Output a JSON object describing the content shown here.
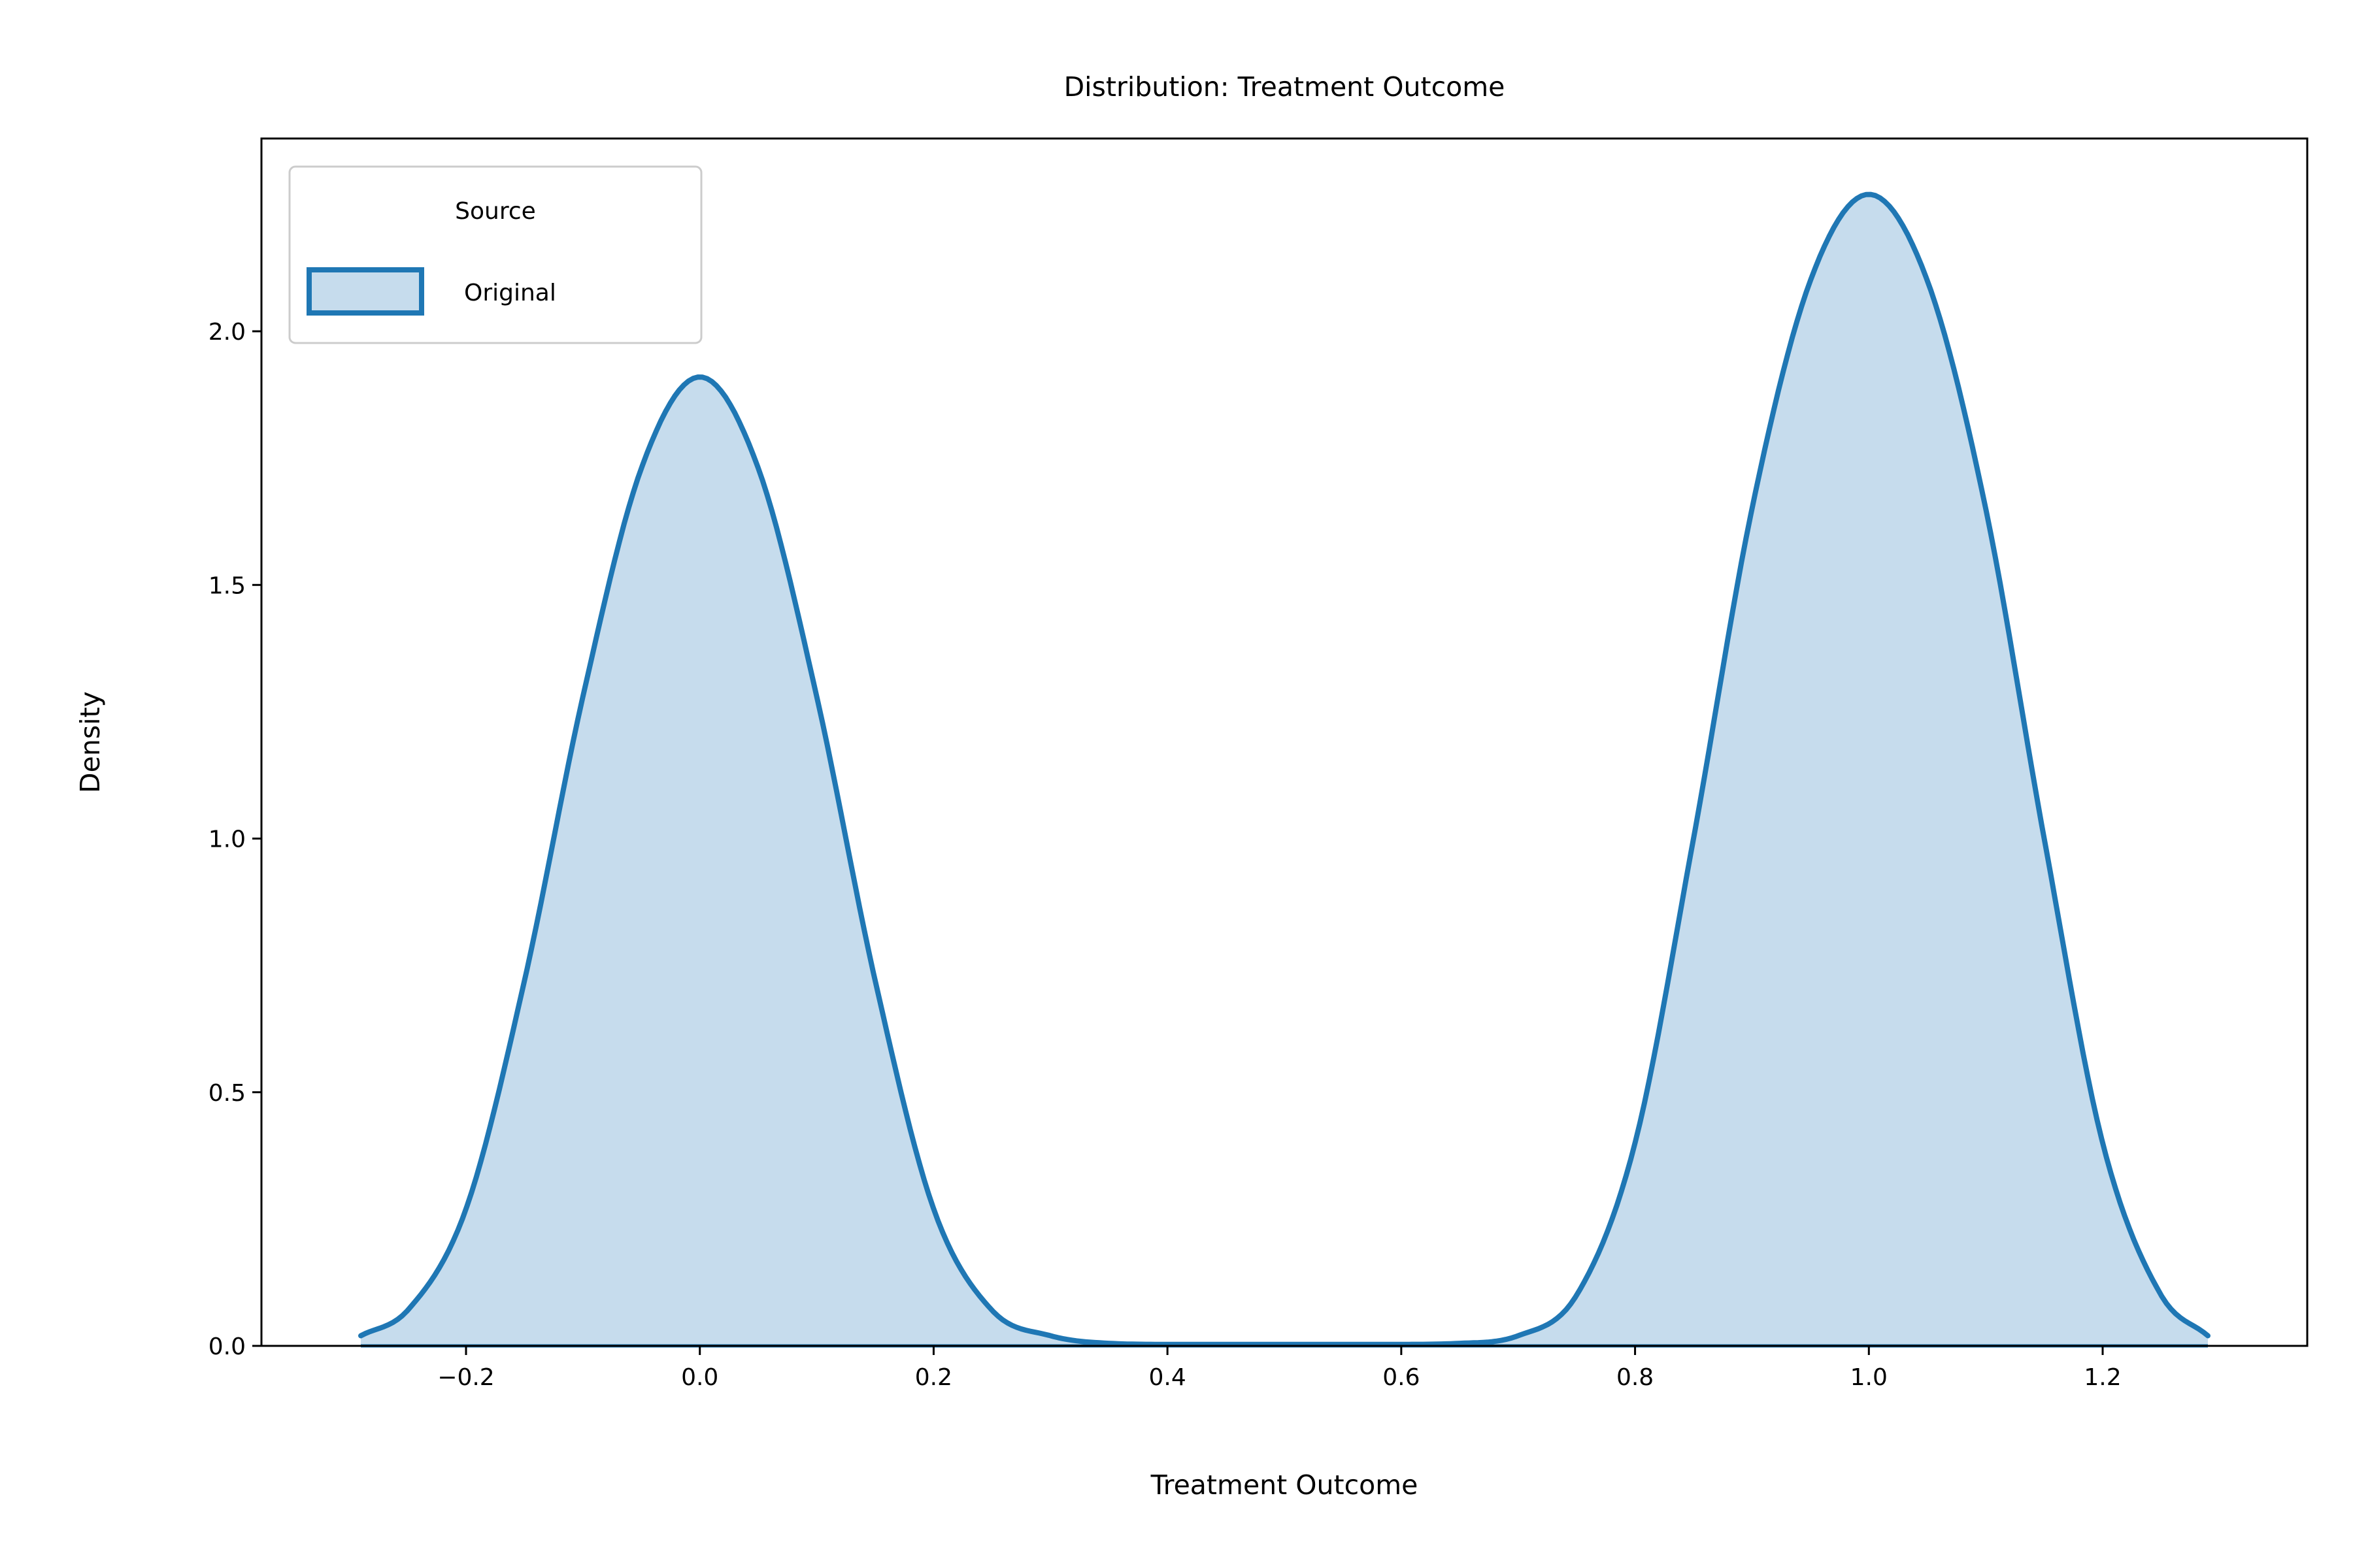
{
  "chart_data": {
    "type": "area",
    "title": "Distribution: Treatment Outcome",
    "xlabel": "Treatment Outcome",
    "ylabel": "Density",
    "xlim": [
      -0.375,
      1.375
    ],
    "ylim": [
      0,
      2.38
    ],
    "x_ticks": [
      -0.2,
      0.0,
      0.2,
      0.4,
      0.6,
      0.8,
      1.0,
      1.2
    ],
    "x_tick_labels": [
      "−0.2",
      "0.0",
      "0.2",
      "0.4",
      "0.6",
      "0.8",
      "1.0",
      "1.2"
    ],
    "y_ticks": [
      0.0,
      0.5,
      1.0,
      1.5,
      2.0
    ],
    "y_tick_labels": [
      "0.0",
      "0.5",
      "1.0",
      "1.5",
      "2.0"
    ],
    "grid": false,
    "legend": {
      "title": "Source",
      "placement": "upper-left",
      "entries": [
        "Original"
      ]
    },
    "series": [
      {
        "name": "Original",
        "color": "#1f77b4",
        "fill_color": "#c6dced",
        "x": [
          -0.29,
          -0.25,
          -0.2,
          -0.15,
          -0.1,
          -0.05,
          0.0,
          0.05,
          0.1,
          0.15,
          0.2,
          0.25,
          0.3,
          0.35,
          0.4,
          0.45,
          0.5,
          0.55,
          0.6,
          0.65,
          0.7,
          0.75,
          0.8,
          0.85,
          0.9,
          0.95,
          1.0,
          1.05,
          1.1,
          1.15,
          1.2,
          1.25,
          1.29
        ],
        "y": [
          0.02,
          0.07,
          0.27,
          0.72,
          1.28,
          1.73,
          1.91,
          1.73,
          1.28,
          0.72,
          0.27,
          0.07,
          0.02,
          0.005,
          0.003,
          0.003,
          0.003,
          0.003,
          0.003,
          0.005,
          0.02,
          0.1,
          0.4,
          1.0,
          1.65,
          2.1,
          2.27,
          2.1,
          1.65,
          1.0,
          0.4,
          0.1,
          0.02
        ]
      }
    ]
  }
}
